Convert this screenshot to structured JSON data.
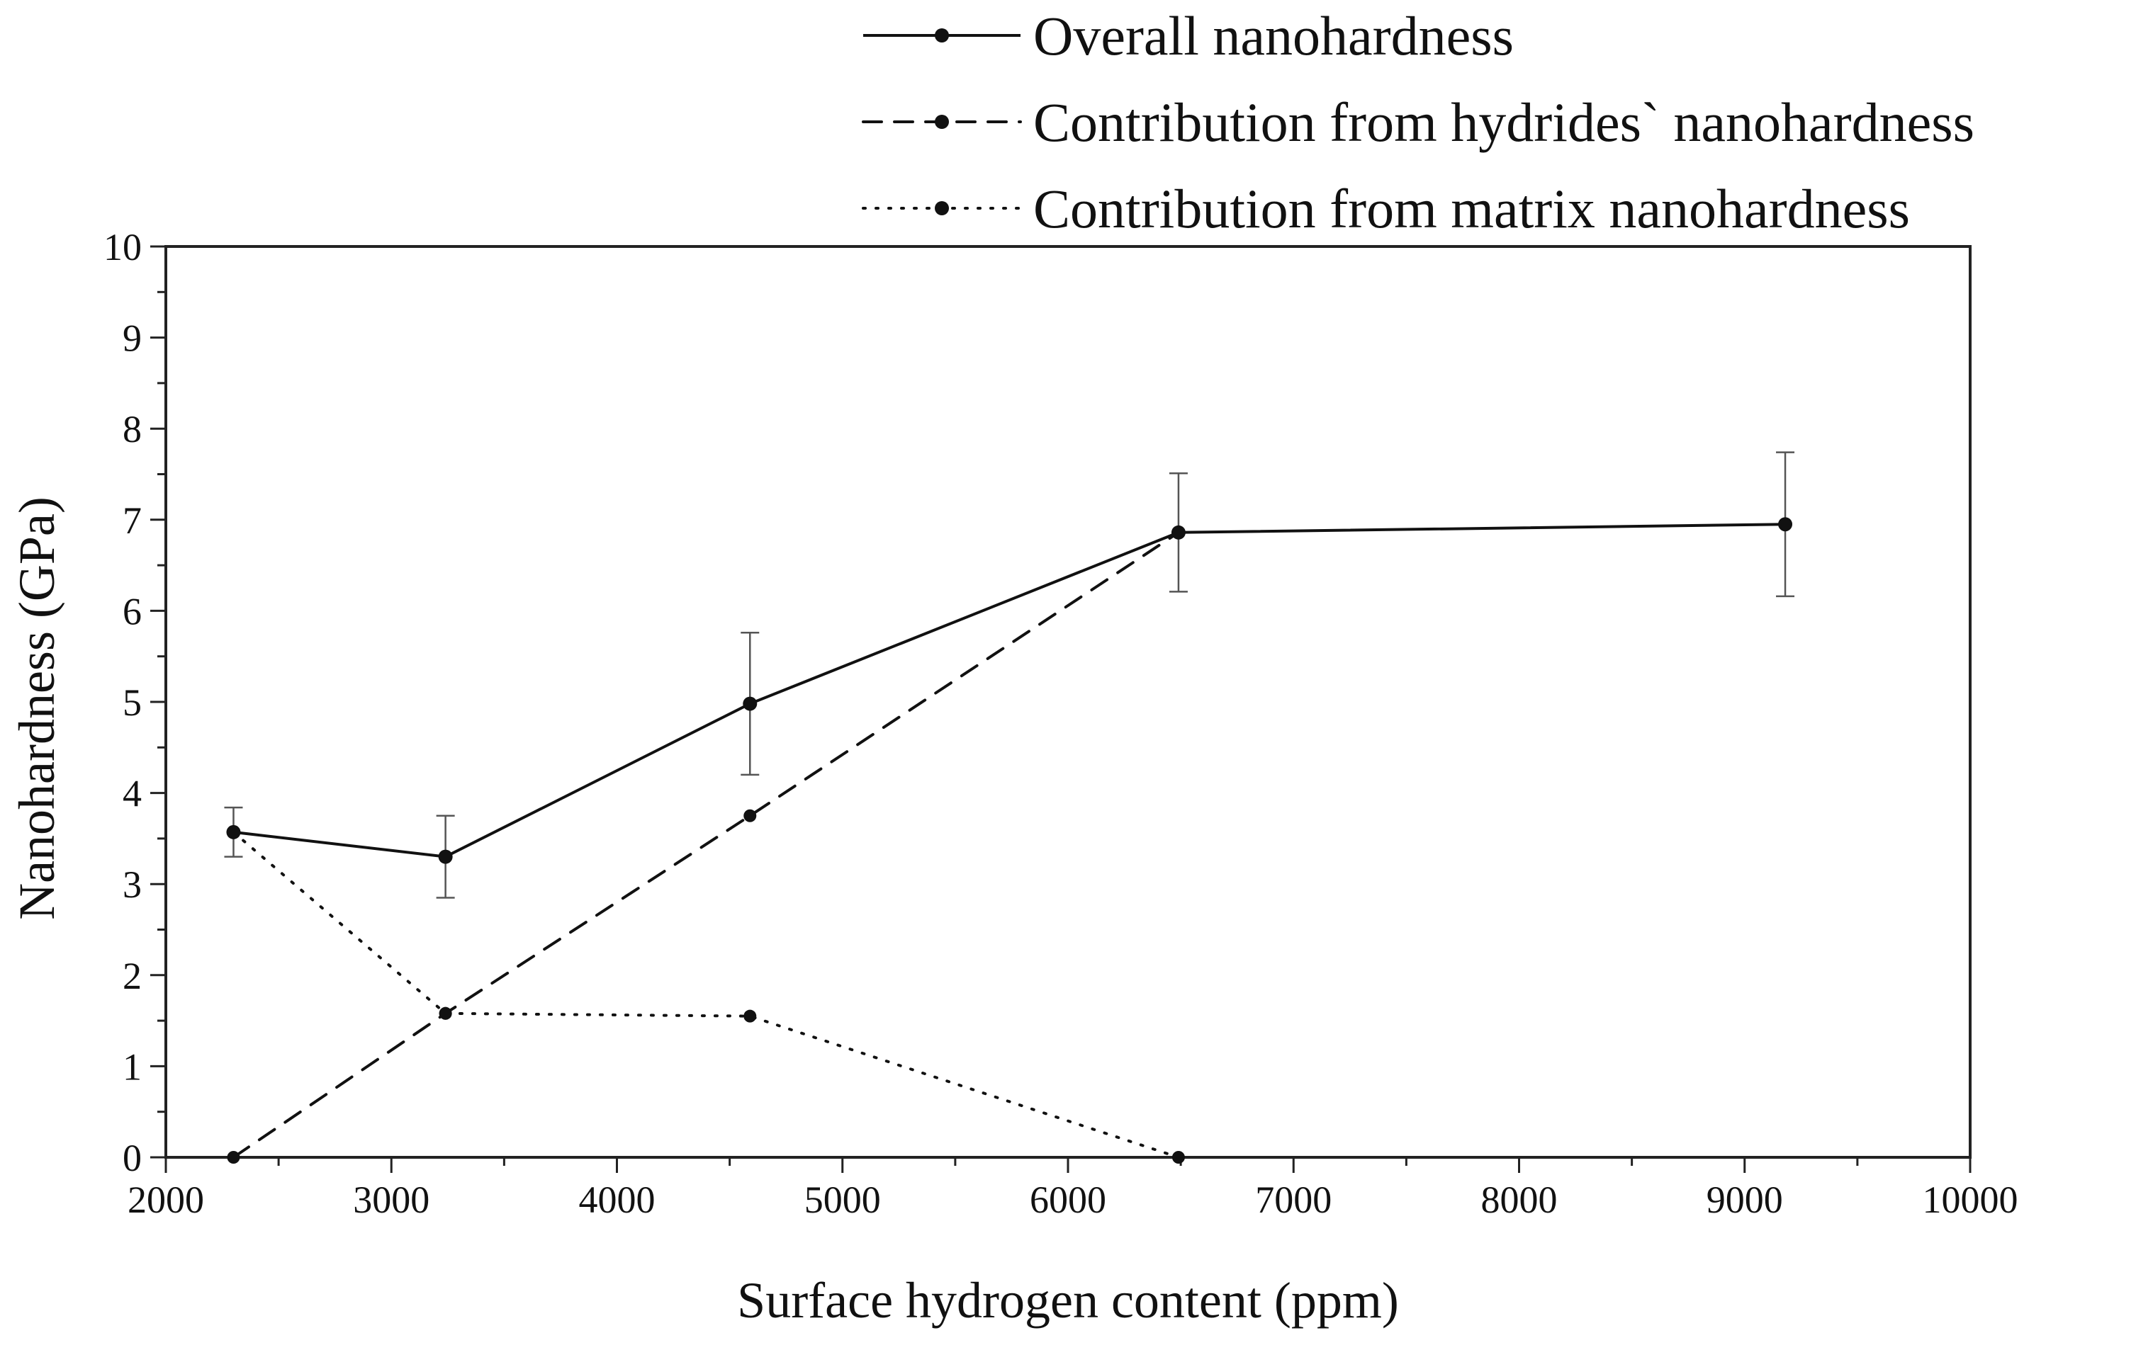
{
  "chart_data": {
    "type": "line",
    "title": "",
    "xlabel": "Surface hydrogen content (ppm)",
    "ylabel": "Nanohardness (GPa)",
    "xlim": [
      2000,
      10000
    ],
    "ylim": [
      0,
      10
    ],
    "x_ticks": [
      2000,
      3000,
      4000,
      5000,
      6000,
      7000,
      8000,
      9000,
      10000
    ],
    "y_ticks": [
      0,
      1,
      2,
      3,
      4,
      5,
      6,
      7,
      8,
      9,
      10
    ],
    "x_minor_step": 500,
    "y_minor_step": 0.5,
    "grid": false,
    "legend_position": "top-right, outside plot area",
    "series": [
      {
        "name": "Overall nanohardness",
        "style": "solid",
        "marker": "circle",
        "x": [
          2300,
          3240,
          4590,
          6490,
          9180
        ],
        "y": [
          3.57,
          3.3,
          4.98,
          6.86,
          6.95
        ],
        "error": [
          0.27,
          0.45,
          0.78,
          0.65,
          0.79
        ]
      },
      {
        "name": "Contribution from hydrides` nanohardness",
        "style": "dashed",
        "marker": "circle",
        "x": [
          2300,
          3240,
          4590,
          6490
        ],
        "y": [
          0.0,
          1.58,
          3.75,
          6.86
        ]
      },
      {
        "name": "Contribution from matrix nanohardness",
        "style": "dotted",
        "marker": "circle",
        "x": [
          2300,
          3240,
          4590,
          6490
        ],
        "y": [
          3.57,
          1.58,
          1.55,
          0.0
        ]
      }
    ]
  }
}
